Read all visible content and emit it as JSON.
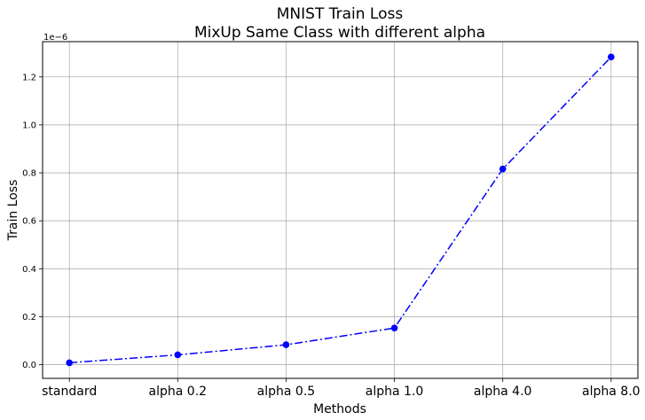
{
  "chart_data": {
    "type": "line",
    "title": "MNIST Train Loss",
    "subtitle": "MixUp Same Class with different alpha",
    "xlabel": "Methods",
    "ylabel": "Train Loss",
    "y_scale_label": "1e−6",
    "categories": [
      "standard",
      "alpha 0.2",
      "alpha 0.5",
      "alpha 1.0",
      "alpha 4.0",
      "alpha 8.0"
    ],
    "series": [
      {
        "values": [
          0.008,
          0.041,
          0.083,
          0.153,
          0.816,
          1.283
        ]
      }
    ],
    "y_ticks": [
      0.0,
      0.2,
      0.4,
      0.6,
      0.8,
      1.0,
      1.2
    ],
    "y_tick_labels": [
      "0.0",
      "0.2",
      "0.4",
      "0.6",
      "0.8",
      "1.0",
      "1.2"
    ],
    "ylim": [
      -0.057,
      1.347
    ],
    "grid": true,
    "line_style": "dash-dot",
    "marker": "circle",
    "colors": {
      "series": "#0000ff",
      "grid": "#b0b0b0",
      "axis": "#000000"
    }
  }
}
